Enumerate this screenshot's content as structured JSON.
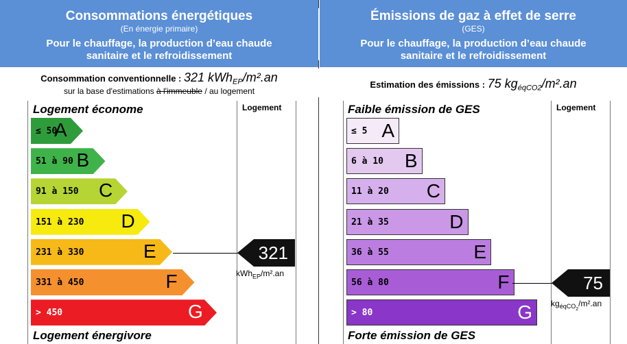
{
  "energy": {
    "title": "Consommations énergétiques",
    "subtitle": "(En énergie primaire)",
    "description_line1": "Pour le chauffage, la production d’eau chaude",
    "description_line2": "sanitaire et le refroidissement",
    "estimate_label": "Consommation conventionnelle :",
    "estimate_value": "321 kWh",
    "estimate_sub": "EP",
    "estimate_unit": "/m².an",
    "basis_prefix": "sur la base d'estimations",
    "basis_struck": "à l'immeuble",
    "basis_suffix": "/ au logement",
    "top_label": "Logement économe",
    "bottom_label": "Logement énergivore",
    "column_label": "Logement",
    "classes": [
      {
        "range": "≤ 50",
        "letter": "A",
        "color": "#2e9c3a"
      },
      {
        "range": "51 à 90",
        "letter": "B",
        "color": "#3fb34a"
      },
      {
        "range": "91 à 150",
        "letter": "C",
        "color": "#b6d433"
      },
      {
        "range": "151 à 230",
        "letter": "D",
        "color": "#f6ea0f"
      },
      {
        "range": "231 à 330",
        "letter": "E",
        "color": "#f6b918"
      },
      {
        "range": "331 à 450",
        "letter": "F",
        "color": "#f5902f"
      },
      {
        "range": "> 450",
        "letter": "G",
        "color": "#ec1c24"
      }
    ],
    "marker_value": "321",
    "marker_unit_main": "kWh",
    "marker_unit_sub": "EP",
    "marker_unit_tail": "/m².an"
  },
  "ges": {
    "title": "Émissions de gaz à effet de serre",
    "subtitle": "(GES)",
    "description_line1": "Pour le chauffage, la production d’eau chaude",
    "description_line2": "sanitaire et le refroidissement",
    "estimate_label": "Estimation des émissions :",
    "estimate_value": "75 kg",
    "estimate_sub": "éqCO2",
    "estimate_unit": "/m².an",
    "top_label": "Faible émission de GES",
    "bottom_label": "Forte émission de GES",
    "column_label": "Logement",
    "classes": [
      {
        "range": "≤ 5",
        "letter": "A",
        "color": "#f4eaf8"
      },
      {
        "range": "6 à 10",
        "letter": "B",
        "color": "#e3c8f0"
      },
      {
        "range": "11 à 20",
        "letter": "C",
        "color": "#d6b0ec"
      },
      {
        "range": "21 à 35",
        "letter": "D",
        "color": "#ca98e6"
      },
      {
        "range": "36 à 55",
        "letter": "E",
        "color": "#bb7ee0"
      },
      {
        "range": "56 à 80",
        "letter": "F",
        "color": "#a85dd6"
      },
      {
        "range": "> 80",
        "letter": "G",
        "color": "#8a36c8"
      }
    ],
    "marker_value": "75",
    "marker_unit_main": "kg",
    "marker_unit_sub": "éqCO",
    "marker_unit_sub2": "2",
    "marker_unit_tail": "/m².an"
  }
}
